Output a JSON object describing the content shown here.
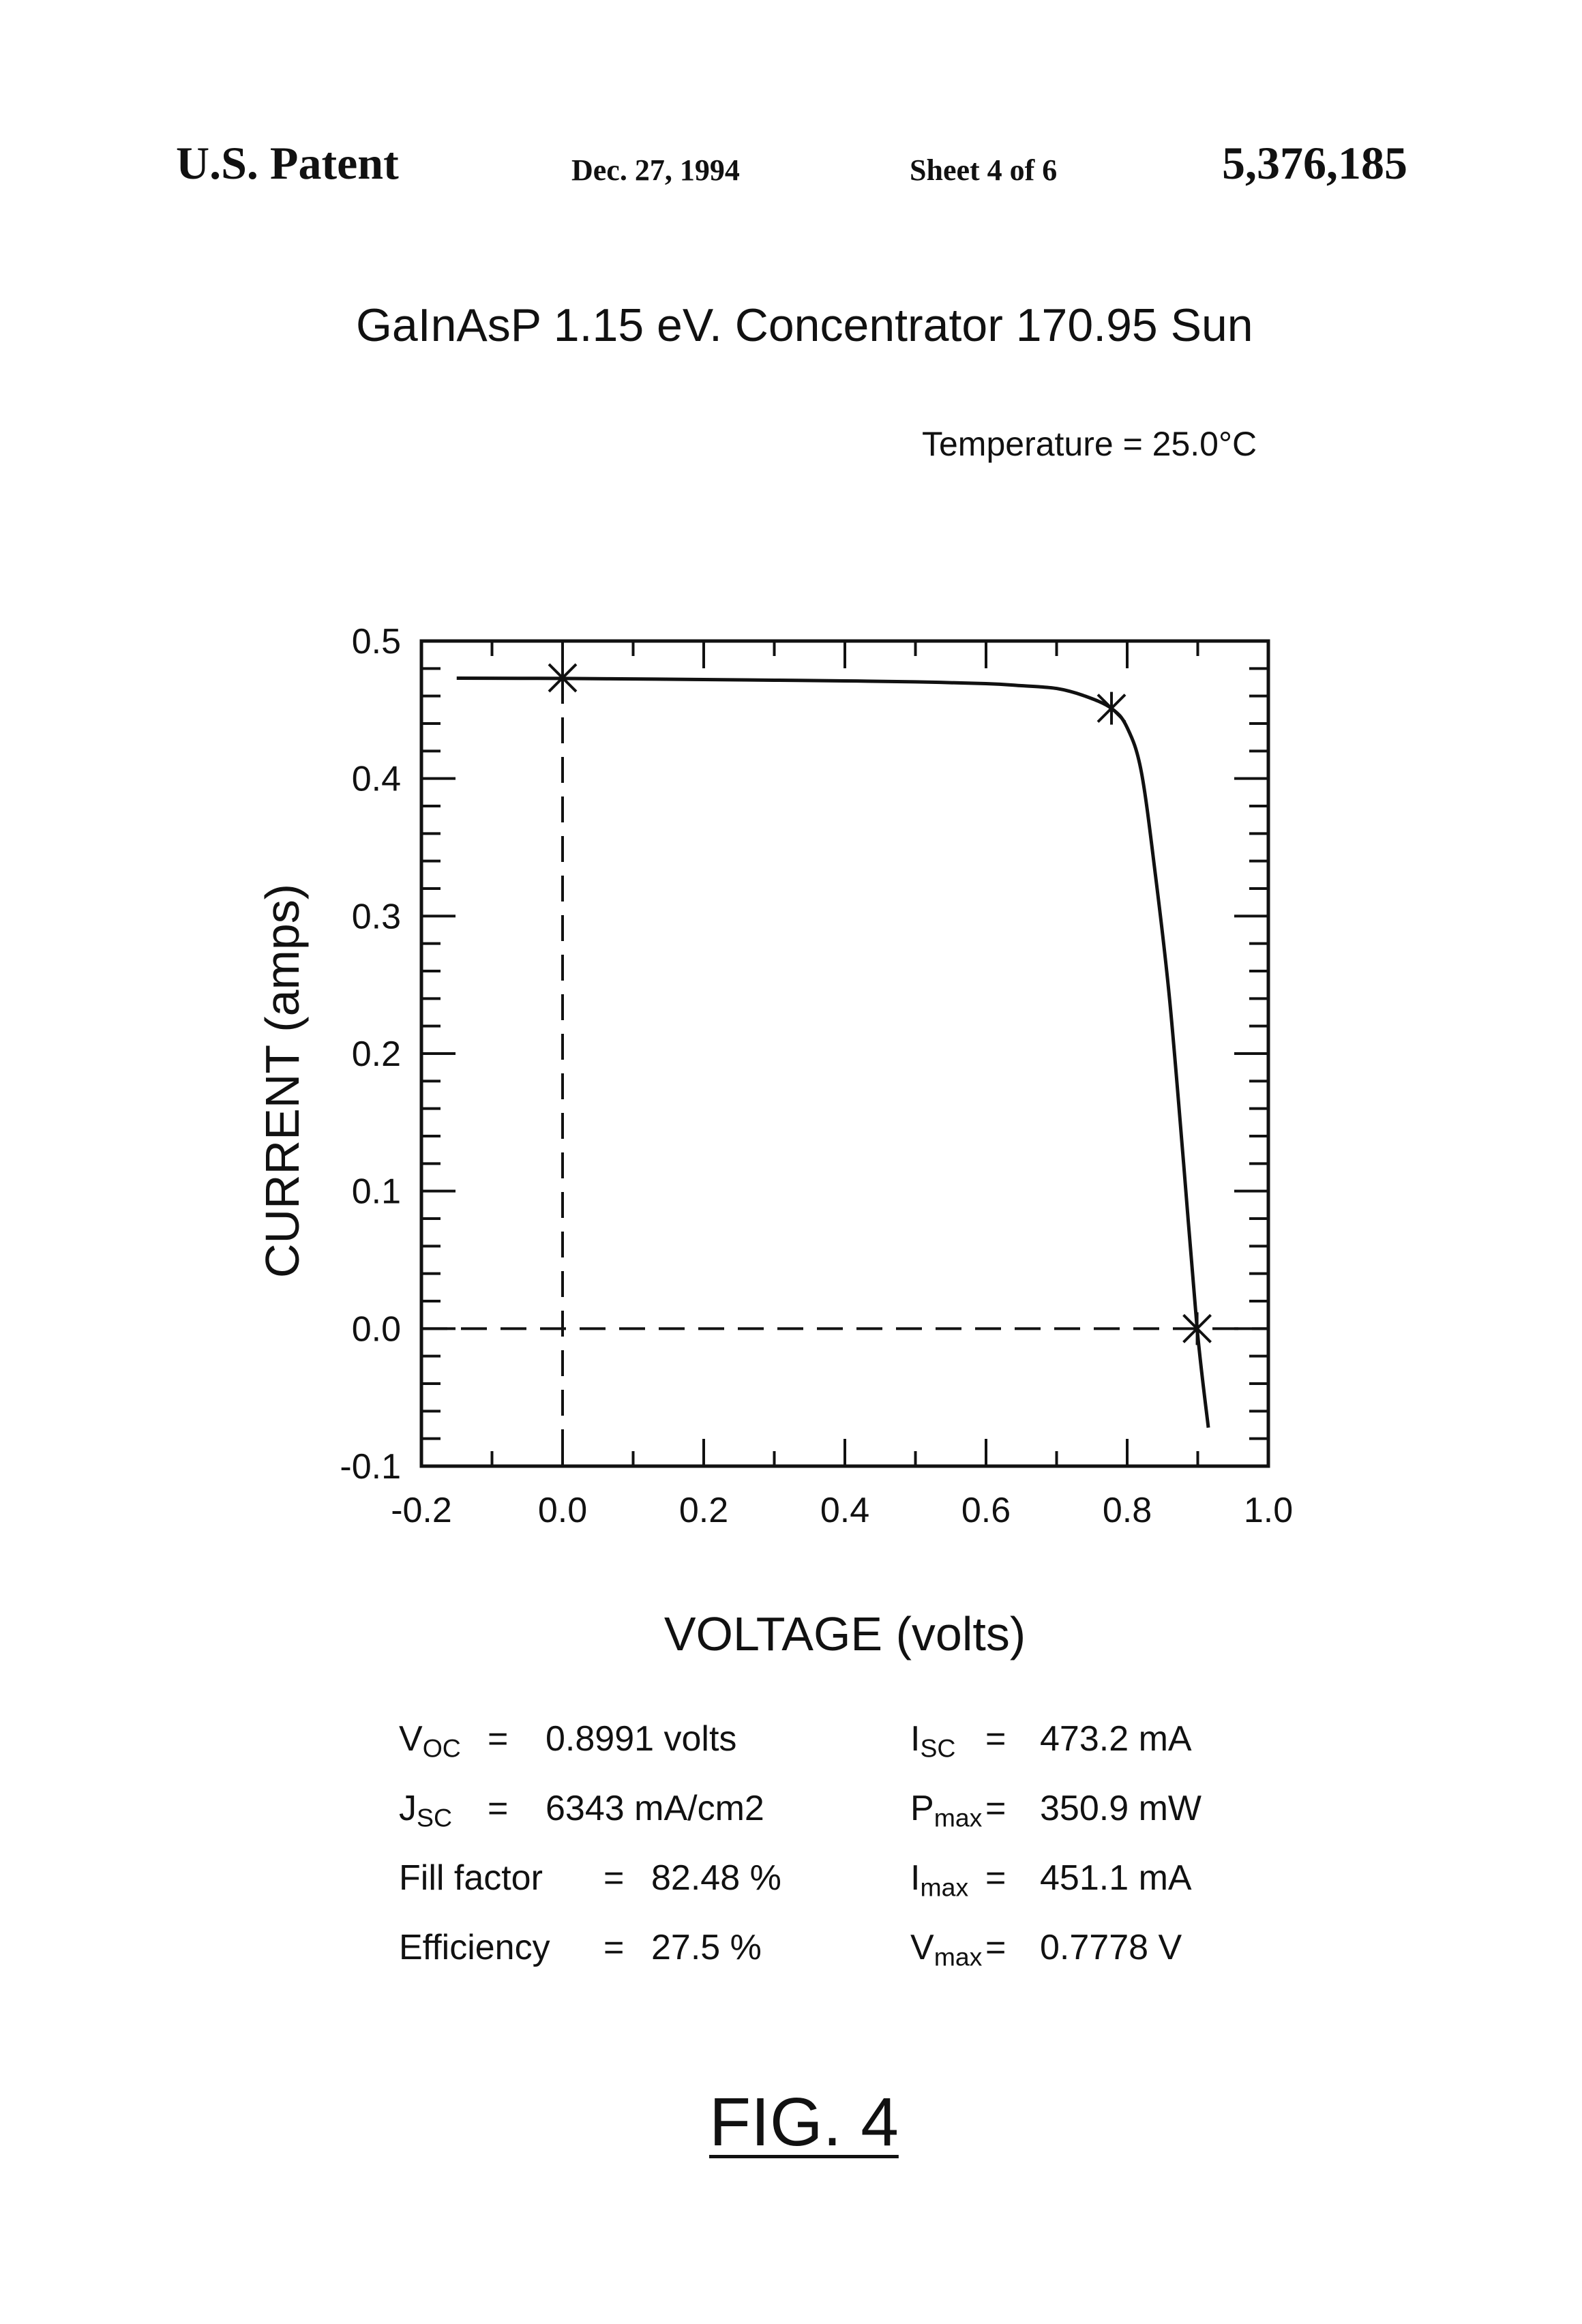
{
  "header": {
    "left": "U.S. Patent",
    "date": "Dec. 27, 1994",
    "sheet": "Sheet 4 of 6",
    "patent_number": "5,376,185"
  },
  "figure": {
    "title": "GaInAsP  1.15 eV.  Concentrator  170.95  Sun",
    "temperature": "Temperature  =  25.0°C",
    "label": "FIG. 4"
  },
  "parameters": {
    "left": [
      {
        "sym": "V",
        "sub": "OC",
        "eq": "=",
        "value": "0.8991 volts"
      },
      {
        "sym": "J",
        "sub": "SC",
        "eq": "=",
        "value": "6343 mA/cm2"
      },
      {
        "sym": "Fill factor",
        "sub": "",
        "eq": "=",
        "value": "82.48 %"
      },
      {
        "sym": "Efficiency",
        "sub": "",
        "eq": "=",
        "value": "27.5 %"
      }
    ],
    "right": [
      {
        "sym": "I",
        "sub": "SC",
        "eq": "=",
        "value": "473.2 mA"
      },
      {
        "sym": "P",
        "sub": "max",
        "eq": "=",
        "value": "350.9 mW"
      },
      {
        "sym": "I",
        "sub": "max",
        "eq": "=",
        "value": "451.1 mA"
      },
      {
        "sym": "V",
        "sub": "max",
        "eq": "=",
        "value": "0.7778 V"
      }
    ]
  },
  "chart_data": {
    "type": "line",
    "xlabel": "VOLTAGE (volts)",
    "ylabel": "CURRENT (amps)",
    "xlim": [
      -0.2,
      1.0
    ],
    "ylim": [
      -0.1,
      0.5
    ],
    "xticks": [
      "-0.2",
      "0.0",
      "0.2",
      "0.4",
      "0.6",
      "0.8",
      "1.0"
    ],
    "yticks": [
      "-0.1",
      "0.0",
      "0.1",
      "0.2",
      "0.3",
      "0.4",
      "0.5"
    ],
    "grid": false,
    "series": [
      {
        "x": [
          -0.15,
          -0.1,
          0.0,
          0.1,
          0.2,
          0.3,
          0.4,
          0.5,
          0.6,
          0.65,
          0.7,
          0.74,
          0.7778,
          0.8,
          0.82,
          0.84,
          0.86,
          0.88,
          0.8991,
          0.915
        ],
        "y": [
          0.473,
          0.4729,
          0.4728,
          0.4724,
          0.472,
          0.4715,
          0.471,
          0.4703,
          0.469,
          0.4675,
          0.4655,
          0.46,
          0.451,
          0.437,
          0.405,
          0.33,
          0.24,
          0.12,
          0.0,
          -0.072
        ]
      }
    ],
    "markers": [
      {
        "x": 0.0,
        "y": 0.4732
      },
      {
        "x": 0.7778,
        "y": 0.4511
      },
      {
        "x": 0.8991,
        "y": 0.0
      }
    ],
    "reference_lines": [
      {
        "orientation": "vertical",
        "x": 0.0,
        "style": "dashed"
      },
      {
        "orientation": "horizontal",
        "y": 0.0,
        "style": "dashed"
      }
    ]
  }
}
